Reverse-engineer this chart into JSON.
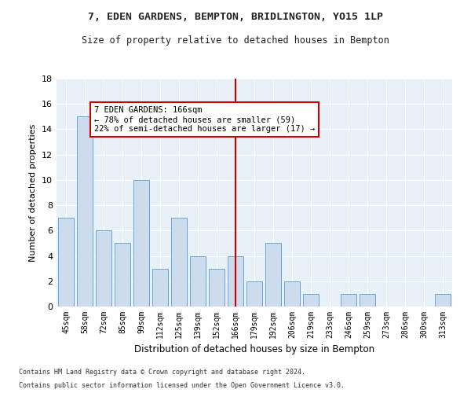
{
  "title1": "7, EDEN GARDENS, BEMPTON, BRIDLINGTON, YO15 1LP",
  "title2": "Size of property relative to detached houses in Bempton",
  "xlabel": "Distribution of detached houses by size in Bempton",
  "ylabel": "Number of detached properties",
  "categories": [
    "45sqm",
    "58sqm",
    "72sqm",
    "85sqm",
    "99sqm",
    "112sqm",
    "125sqm",
    "139sqm",
    "152sqm",
    "166sqm",
    "179sqm",
    "192sqm",
    "206sqm",
    "219sqm",
    "233sqm",
    "246sqm",
    "259sqm",
    "273sqm",
    "286sqm",
    "300sqm",
    "313sqm"
  ],
  "values": [
    7,
    15,
    6,
    5,
    10,
    3,
    7,
    4,
    3,
    4,
    2,
    5,
    2,
    1,
    0,
    1,
    1,
    0,
    0,
    0,
    1
  ],
  "bar_color": "#ccdcec",
  "bar_edge_color": "#6aaad4",
  "vline_x": 9,
  "vline_color": "#cc0000",
  "annotation_text": "7 EDEN GARDENS: 166sqm\n← 78% of detached houses are smaller (59)\n22% of semi-detached houses are larger (17) →",
  "annotation_box_color": "#cc0000",
  "ylim": [
    0,
    18
  ],
  "yticks": [
    0,
    2,
    4,
    6,
    8,
    10,
    12,
    14,
    16,
    18
  ],
  "footnote1": "Contains HM Land Registry data © Crown copyright and database right 2024.",
  "footnote2": "Contains public sector information licensed under the Open Government Licence v3.0.",
  "fig_bg_color": "#ffffff",
  "plot_bg_color": "#e8f0f8",
  "grid_color": "#ffffff"
}
